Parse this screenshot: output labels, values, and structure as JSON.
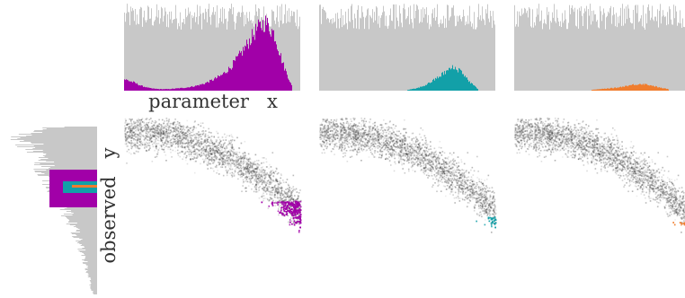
{
  "chart_data": {
    "type": "scatter",
    "title": "",
    "xlabel": "parameter   x",
    "ylabel": "observed   y",
    "grid": false,
    "legend": "none",
    "prior_color": "#c8c8c8",
    "scatter_color": "#444444",
    "y_marginal_prior": {
      "description_free": true,
      "y_centers": [
        0.95,
        0.9,
        0.85,
        0.8,
        0.75,
        0.7,
        0.65,
        0.6,
        0.55,
        0.5,
        0.45,
        0.4,
        0.35,
        0.3,
        0.25,
        0.2,
        0.15,
        0.1,
        0.05,
        0.0
      ],
      "relative_heights": [
        0.55,
        0.95,
        0.9,
        0.8,
        0.72,
        0.7,
        0.62,
        0.55,
        0.5,
        0.44,
        0.4,
        0.34,
        0.28,
        0.25,
        0.2,
        0.17,
        0.14,
        0.1,
        0.08,
        0.05
      ]
    },
    "panels": [
      {
        "color": "#a100a8",
        "y_band": [
          0.47,
          0.72
        ],
        "x_posterior": {
          "x_centers": [
            0.0,
            0.05,
            0.1,
            0.15,
            0.2,
            0.25,
            0.3,
            0.35,
            0.4,
            0.45,
            0.5,
            0.55,
            0.6,
            0.65,
            0.7,
            0.75,
            0.8,
            0.85,
            0.9,
            0.95
          ],
          "relative_heights": [
            0.15,
            0.11,
            0.06,
            0.03,
            0.02,
            0.02,
            0.03,
            0.04,
            0.06,
            0.09,
            0.14,
            0.2,
            0.3,
            0.45,
            0.62,
            0.8,
            0.9,
            0.75,
            0.35,
            0.06
          ]
        }
      },
      {
        "color": "#12a0a8",
        "y_band": [
          0.56,
          0.63
        ],
        "x_posterior": {
          "x_centers": [
            0.5,
            0.55,
            0.6,
            0.65,
            0.7,
            0.75,
            0.8,
            0.85,
            0.9
          ],
          "relative_heights": [
            0.01,
            0.03,
            0.07,
            0.14,
            0.22,
            0.3,
            0.27,
            0.12,
            0.02
          ]
        }
      },
      {
        "color": "#f07d2e",
        "y_band": [
          0.585,
          0.605
        ],
        "x_posterior": {
          "x_centers": [
            0.45,
            0.5,
            0.55,
            0.6,
            0.65,
            0.7,
            0.75,
            0.8,
            0.85,
            0.9
          ],
          "relative_heights": [
            0.01,
            0.02,
            0.03,
            0.04,
            0.06,
            0.08,
            0.09,
            0.07,
            0.04,
            0.02
          ]
        }
      }
    ]
  }
}
